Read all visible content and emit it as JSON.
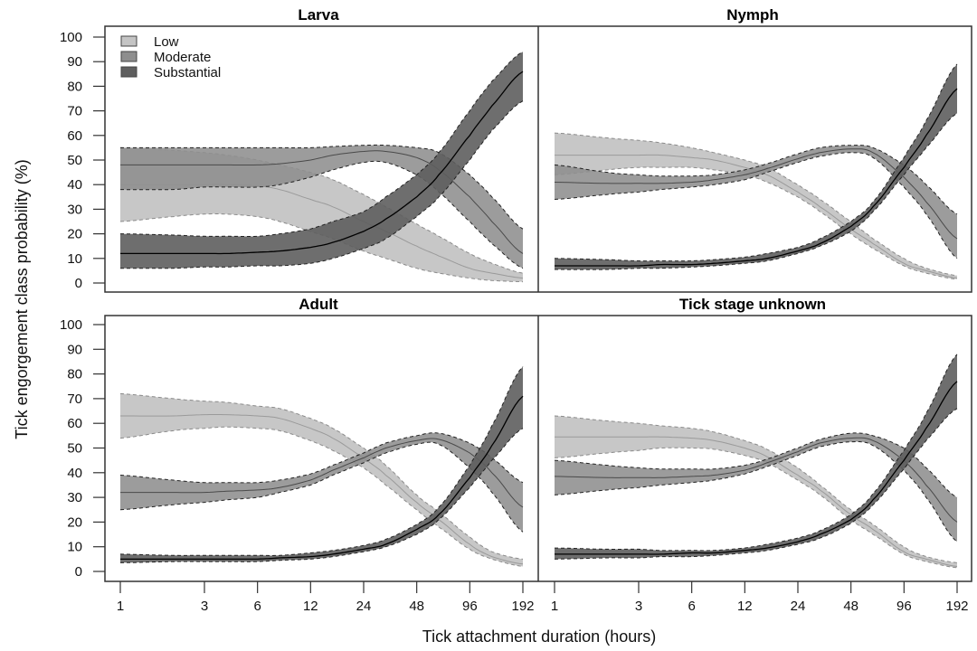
{
  "chart_data": {
    "type": "line",
    "subtype": "faceted line with confidence bands",
    "ylabel": "Tick engorgement class probability (%)",
    "xlabel": "Tick attachment duration (hours)",
    "x_scale": "log2",
    "x_ticks": [
      1,
      3,
      6,
      12,
      24,
      48,
      96,
      192
    ],
    "y_ticks": [
      0,
      10,
      20,
      30,
      40,
      50,
      60,
      70,
      80,
      90,
      100
    ],
    "ylim": [
      0,
      100
    ],
    "xlim": [
      1,
      192
    ],
    "legend": {
      "position": "top-left of Larva panel",
      "entries": [
        {
          "label": "Low",
          "color": "#c4c4c4"
        },
        {
          "label": "Moderate",
          "color": "#8e8e8e"
        },
        {
          "label": "Substantial",
          "color": "#5e5e5e"
        }
      ]
    },
    "x": [
      1,
      2,
      3,
      4,
      6,
      8,
      12,
      16,
      24,
      32,
      48,
      64,
      96,
      128,
      192
    ],
    "panels": [
      {
        "title": "Larva",
        "series": [
          {
            "name": "Low",
            "mean": [
              40,
              40,
              40,
              40,
              39.5,
              38,
              34,
              31,
              25,
              21,
              15,
              11,
              6,
              4,
              2
            ],
            "lower": [
              25,
              27,
              28,
              28,
              27,
              25,
              21,
              18,
              13,
              10,
              6,
              4,
              2,
              1,
              0.5
            ],
            "upper": [
              55,
              54,
              53,
              52,
              50,
              48,
              45,
              42,
              36,
              31,
              24,
              19,
              12,
              8,
              4
            ]
          },
          {
            "name": "Moderate",
            "mean": [
              48,
              48,
              48,
              48,
              48,
              48.5,
              50,
              52,
              53.5,
              53.5,
              51,
              46,
              35,
              25,
              12
            ],
            "lower": [
              38,
              38,
              39,
              39,
              39,
              40,
              43,
              46,
              49,
              49,
              44,
              37,
              25,
              16,
              6
            ],
            "upper": [
              55,
              55,
              55,
              55,
              55,
              55,
              55,
              55.5,
              56,
              56,
              55,
              53,
              44,
              35,
              22
            ]
          },
          {
            "name": "Substantial",
            "mean": [
              12,
              12,
              12,
              12,
              12.5,
              13,
              14.5,
              16.5,
              21,
              26,
              35,
              44,
              60,
              72,
              86
            ],
            "lower": [
              6,
              6,
              6.5,
              6.5,
              7,
              7,
              8,
              10,
              14,
              18,
              27,
              35,
              50,
              62,
              74
            ],
            "upper": [
              20,
              19.5,
              19,
              19,
              19,
              20,
              22,
              25,
              29,
              35,
              44,
              53,
              70,
              82,
              94
            ]
          }
        ]
      },
      {
        "title": "Nymph",
        "series": [
          {
            "name": "Low",
            "mean": [
              52,
              52,
              52,
              52,
              51,
              50,
              47,
              44,
              37,
              31,
              22,
              16,
              8,
              5,
              2
            ],
            "lower": [
              44,
              46,
              47,
              47,
              47,
              46,
              44,
              41,
              35,
              29,
              20,
              14,
              7,
              4,
              1.5
            ],
            "upper": [
              61,
              59,
              58,
              57,
              55,
              53,
              50,
              47,
              40,
              34,
              25,
              18,
              10,
              6,
              3
            ]
          },
          {
            "name": "Moderate",
            "mean": [
              41,
              40.5,
              40.5,
              40.5,
              41,
              42,
              44,
              46.5,
              50.5,
              53,
              54.5,
              53,
              43,
              33,
              18
            ],
            "lower": [
              34,
              36,
              37,
              38,
              39,
              40,
              42,
              45,
              49,
              51.5,
              53,
              51,
              39,
              28,
              10
            ],
            "upper": [
              48,
              45,
              44,
              43.5,
              43.5,
              44,
              46,
              48.5,
              52.5,
              55,
              56,
              55,
              48,
              40,
              28
            ]
          },
          {
            "name": "Substantial",
            "mean": [
              7,
              7,
              7,
              7.5,
              7.5,
              8,
              9,
              10,
              13,
              16,
              23,
              31,
              47,
              60,
              79
            ],
            "lower": [
              5.5,
              5.5,
              6,
              6,
              6.5,
              7,
              8,
              9,
              12,
              15,
              21,
              29,
              44,
              55,
              69
            ],
            "upper": [
              10,
              9.5,
              9,
              9,
              9,
              9.5,
              10.5,
              12,
              14.5,
              18,
              25,
              33,
              51,
              66,
              89
            ]
          }
        ]
      },
      {
        "title": "Adult",
        "series": [
          {
            "name": "Low",
            "mean": [
              63,
              63,
              63.5,
              63.5,
              63,
              62,
              58,
              54,
              46,
              39,
              28,
              21,
              11,
              6,
              3
            ],
            "lower": [
              54,
              57,
              58,
              58.5,
              58,
              57,
              53,
              49,
              42,
              35,
              25,
              18,
              9,
              5,
              2
            ],
            "upper": [
              72,
              70,
              69,
              68.5,
              67,
              66,
              62,
              58,
              50,
              43,
              31,
              24,
              14,
              8,
              5
            ]
          },
          {
            "name": "Moderate",
            "mean": [
              32,
              32,
              32,
              32.5,
              33,
              34,
              37,
              41,
              46,
              50,
              53,
              53.5,
              48,
              40,
              26
            ],
            "lower": [
              25,
              27,
              28,
              29,
              30,
              32,
              35,
              39,
              44,
              48,
              51.5,
              51.5,
              42,
              32,
              16
            ],
            "upper": [
              39,
              37,
              36,
              36,
              36,
              37,
              39.5,
              43,
              48,
              52,
              55,
              56,
              52,
              46,
              36
            ]
          },
          {
            "name": "Substantial",
            "mean": [
              5,
              5,
              5,
              5,
              5,
              5.5,
              6,
              7,
              9,
              11,
              17,
              23,
              38,
              51,
              71
            ],
            "lower": [
              3.5,
              4,
              4,
              4,
              4,
              4.5,
              5,
              6,
              8,
              10,
              15,
              21,
              34,
              45,
              58
            ],
            "upper": [
              7,
              6.5,
              6.5,
              6.5,
              6.5,
              6.5,
              7.5,
              8.5,
              10.5,
              13,
              19,
              26,
              43,
              59,
              83
            ]
          }
        ]
      },
      {
        "title": "Tick stage unknown",
        "series": [
          {
            "name": "Low",
            "mean": [
              54.5,
              54.5,
              54.5,
              54.5,
              54,
              53,
              50,
              46.5,
              39,
              33,
              23,
              17,
              8,
              5,
              2
            ],
            "lower": [
              46,
              48,
              49,
              50,
              50,
              49.5,
              47,
              44,
              37,
              31,
              21,
              15,
              7,
              4,
              1.5
            ],
            "upper": [
              63,
              61,
              60,
              59,
              58,
              56.5,
              53,
              49.5,
              42,
              35,
              25,
              19,
              10,
              6,
              3.5
            ]
          },
          {
            "name": "Moderate",
            "mean": [
              38.5,
              38,
              38,
              38,
              38.5,
              39,
              41,
              44,
              48.5,
              52,
              54,
              53,
              45,
              35,
              20
            ],
            "lower": [
              31,
              33,
              34,
              35,
              36,
              37,
              39.5,
              42.5,
              47,
              50.5,
              52.5,
              51,
              41,
              30,
              12
            ],
            "upper": [
              45,
              43,
              42,
              41.5,
              41.5,
              41.5,
              43,
              45.5,
              50,
              53.5,
              56,
              55,
              50,
              42,
              30
            ]
          },
          {
            "name": "Substantial",
            "mean": [
              7,
              7,
              7,
              7,
              7.5,
              7.5,
              8.5,
              9.5,
              12,
              15,
              21,
              29,
              45,
              58,
              77
            ],
            "lower": [
              5,
              5.5,
              5.5,
              6,
              6,
              6.5,
              7.5,
              8.5,
              11,
              13.5,
              19.5,
              27,
              41.5,
              53,
              66
            ],
            "upper": [
              9.5,
              9,
              9,
              8.5,
              8.5,
              8.5,
              9.5,
              11,
              13.5,
              16.5,
              23,
              31.5,
              49,
              64,
              88
            ]
          }
        ]
      }
    ]
  },
  "style": {
    "band_colors": {
      "Low": "#c4c4c4",
      "Moderate": "#8e8e8e",
      "Substantial": "#5e5e5e"
    },
    "band_opacity": {
      "Low": 0.95,
      "Moderate": 0.88,
      "Substantial": 0.9
    },
    "line_colors": {
      "Low": "#9a9a9a",
      "Moderate": "#4a4a4a",
      "Substantial": "#000000"
    },
    "frame_color": "#333333"
  }
}
